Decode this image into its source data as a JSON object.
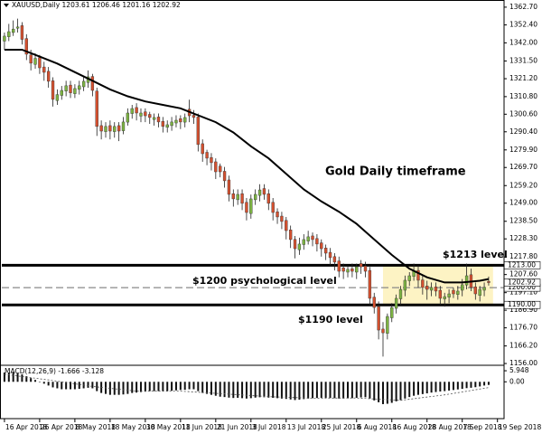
{
  "chart_data": {
    "type": "candlestick",
    "header": "XAUUSD,Daily  1203.61 1206.46 1201.16 1202.92",
    "bull_color": "#7cb342",
    "bear_color": "#d4502f",
    "ma_color": "#000000",
    "xlim": [
      -0.6,
      113.5
    ],
    "xticks": [
      {
        "value": 0,
        "label": "16 Apr 2018"
      },
      {
        "value": 8,
        "label": "26 Apr 2018"
      },
      {
        "value": 16,
        "label": "8 May 2018"
      },
      {
        "value": 24,
        "label": "18 May 2018"
      },
      {
        "value": 32,
        "label": "30 May 2018"
      },
      {
        "value": 40,
        "label": "11 Jun 2018"
      },
      {
        "value": 48,
        "label": "21 Jun 2018"
      },
      {
        "value": 56,
        "label": "3 Jul 2018"
      },
      {
        "value": 64,
        "label": "13 Jul 2018"
      },
      {
        "value": 72,
        "label": "25 Jul 2018"
      },
      {
        "value": 80,
        "label": "6 Aug 2018"
      },
      {
        "value": 88,
        "label": "16 Aug 2018"
      },
      {
        "value": 96,
        "label": "28 Aug 2018"
      },
      {
        "value": 104,
        "label": "7 Sep 2018"
      },
      {
        "value": 112,
        "label": "19 Sep 2018"
      }
    ],
    "ylim": [
      1155.5,
      1365.8
    ],
    "yticks": [
      {
        "value": 1362.7,
        "label": "1362.70"
      },
      {
        "value": 1352.4,
        "label": "1352.40"
      },
      {
        "value": 1342,
        "label": "1342.00"
      },
      {
        "value": 1331.5,
        "label": "1331.50"
      },
      {
        "value": 1321.2,
        "label": "1321.20"
      },
      {
        "value": 1310.8,
        "label": "1310.80"
      },
      {
        "value": 1300.6,
        "label": "1300.60"
      },
      {
        "value": 1290.4,
        "label": "1290.40"
      },
      {
        "value": 1279.9,
        "label": "1279.90"
      },
      {
        "value": 1269.7,
        "label": "1269.70"
      },
      {
        "value": 1259.2,
        "label": "1259.20"
      },
      {
        "value": 1249,
        "label": "1249.00"
      },
      {
        "value": 1238.5,
        "label": "1238.50"
      },
      {
        "value": 1228.3,
        "label": "1228.30"
      },
      {
        "value": 1217.8,
        "label": "1217.80"
      },
      {
        "value": 1207.6,
        "label": "1207.60"
      },
      {
        "value": 1197.1,
        "label": "1197.10"
      },
      {
        "value": 1186.9,
        "label": "1186.90"
      },
      {
        "value": 1176.7,
        "label": "1176.70"
      },
      {
        "value": 1166.2,
        "label": "1166.20"
      },
      {
        "value": 1156,
        "label": "1156.00"
      }
    ],
    "open": [
      1343.0,
      1345.5,
      1348.0,
      1350.5,
      1352.0,
      1344.5,
      1335.0,
      1329.5,
      1333.5,
      1328.0,
      1325.5,
      1320.0,
      1308.5,
      1311.5,
      1314.0,
      1317.5,
      1312.5,
      1315.0,
      1316.5,
      1319.0,
      1322.5,
      1314.0,
      1294.0,
      1290.5,
      1294.0,
      1290.5,
      1294.0,
      1291.0,
      1296.0,
      1301.0,
      1304.5,
      1299.5,
      1302.0,
      1300.5,
      1297.5,
      1299.0,
      1296.5,
      1293.0,
      1294.0,
      1295.5,
      1298.0,
      1296.0,
      1303.5,
      1300.0,
      1299.0,
      1283.5,
      1278.5,
      1275.5,
      1273.0,
      1270.5,
      1267.5,
      1262.5,
      1254.5,
      1251.0,
      1254.5,
      1249.5,
      1243.0,
      1251.0,
      1253.5,
      1257.5,
      1254.5,
      1249.5,
      1244.0,
      1241.5,
      1239.0,
      1233.5,
      1228.0,
      1222.0,
      1225.0,
      1227.0,
      1230.0,
      1228.5,
      1226.0,
      1223.0,
      1220.5,
      1218.0,
      1215.5,
      1211.5,
      1209.0,
      1211.0,
      1209.0,
      1214.0,
      1212.5,
      1210.0,
      1194.5,
      1189.0,
      1176.0,
      1173.5,
      1182.5,
      1188.0,
      1193.5,
      1198.5,
      1204.0,
      1206.5,
      1210.0,
      1204.5,
      1201.0,
      1198.5,
      1200.5,
      1198.5,
      1193.5,
      1194.5,
      1198.5,
      1196.0,
      1198.5,
      1201.5,
      1207.5,
      1200.5,
      1195.5,
      1198.5,
      1203.61
    ],
    "high": [
      1348,
      1353,
      1355,
      1356,
      1354,
      1347,
      1338,
      1336,
      1335,
      1331,
      1328,
      1322,
      1315,
      1317,
      1320,
      1320,
      1318,
      1320,
      1323,
      1326,
      1324,
      1316,
      1297,
      1296,
      1297,
      1296,
      1296,
      1299,
      1304,
      1306,
      1307,
      1304,
      1304,
      1302,
      1301,
      1301,
      1299,
      1297,
      1299,
      1300,
      1300,
      1301,
      1309,
      1303,
      1301,
      1286,
      1280,
      1278,
      1275,
      1272,
      1270,
      1265,
      1257,
      1257,
      1257,
      1252,
      1254,
      1257,
      1260,
      1260,
      1257,
      1252,
      1246,
      1244,
      1241,
      1236,
      1230,
      1229,
      1231,
      1233,
      1232,
      1231,
      1228,
      1225,
      1223,
      1220,
      1218,
      1214,
      1213,
      1214,
      1214,
      1216,
      1215,
      1212,
      1197,
      1192,
      1180,
      1185,
      1191,
      1196,
      1201,
      1207,
      1209,
      1214,
      1213,
      1207,
      1204,
      1203,
      1203,
      1201,
      1197,
      1199,
      1200,
      1201,
      1205,
      1214,
      1211,
      1203,
      1201,
      1203,
      1206.46
    ],
    "low": [
      1338,
      1343,
      1346,
      1348,
      1341,
      1332,
      1326,
      1327,
      1324,
      1320,
      1316,
      1305,
      1306,
      1309,
      1311,
      1310,
      1310,
      1312,
      1314,
      1316,
      1311,
      1288,
      1286,
      1287,
      1286,
      1287,
      1285,
      1289,
      1294,
      1298,
      1297,
      1296,
      1296,
      1295,
      1294,
      1293,
      1290,
      1290,
      1291,
      1293,
      1292,
      1293,
      1296,
      1295,
      1279,
      1273,
      1271,
      1268,
      1263,
      1264,
      1258,
      1250,
      1247,
      1248,
      1245,
      1239,
      1240,
      1248,
      1250,
      1251,
      1245,
      1239,
      1237,
      1234,
      1228,
      1223,
      1217,
      1219,
      1222,
      1225,
      1224,
      1221,
      1218,
      1216,
      1213,
      1210,
      1206,
      1205,
      1206,
      1206,
      1205,
      1208,
      1206,
      1190,
      1185,
      1170,
      1160,
      1170,
      1180,
      1185,
      1190,
      1195,
      1201,
      1204,
      1200,
      1196,
      1193,
      1195,
      1195,
      1190,
      1189,
      1191,
      1194,
      1193,
      1195,
      1199,
      1198,
      1193,
      1192,
      1195,
      1201.16
    ],
    "close": [
      1345.9,
      1348.5,
      1350.0,
      1351.2,
      1344.0,
      1335.4,
      1330.2,
      1333.0,
      1327.5,
      1324.9,
      1319.7,
      1309.2,
      1312.0,
      1314.4,
      1317.1,
      1313.0,
      1315.5,
      1317.1,
      1319.7,
      1322.3,
      1314.4,
      1293.5,
      1290.8,
      1293.5,
      1290.8,
      1293.5,
      1290.8,
      1296.1,
      1301.3,
      1303.9,
      1301.3,
      1301.3,
      1299.7,
      1298.7,
      1298.7,
      1296.1,
      1293.5,
      1294.5,
      1296.1,
      1297.1,
      1296.1,
      1298.7,
      1299.7,
      1298.7,
      1283.0,
      1277.7,
      1275.1,
      1272.5,
      1267.2,
      1267.2,
      1262.0,
      1254.1,
      1251.5,
      1254.1,
      1248.9,
      1243.6,
      1251.5,
      1254.1,
      1256.7,
      1254.1,
      1248.9,
      1243.6,
      1241.0,
      1238.4,
      1233.1,
      1227.9,
      1222.6,
      1225.3,
      1227.9,
      1229.5,
      1227.9,
      1225.3,
      1222.6,
      1220.0,
      1217.4,
      1214.8,
      1209.5,
      1209.5,
      1210.6,
      1209.5,
      1212.1,
      1212.1,
      1209.5,
      1193.8,
      1188.5,
      1175.4,
      1173.8,
      1183.3,
      1188.5,
      1193.8,
      1199.0,
      1204.3,
      1206.9,
      1209.5,
      1204.3,
      1200.1,
      1199.0,
      1200.1,
      1198.0,
      1193.8,
      1194.8,
      1196.4,
      1196.4,
      1198.0,
      1201.7,
      1206.9,
      1200.1,
      1196.4,
      1199.0,
      1200.1,
      1202.92
    ],
    "ma": {
      "x": [
        0,
        4,
        8,
        12,
        16,
        20,
        24,
        28,
        32,
        36,
        40,
        44,
        48,
        52,
        56,
        60,
        64,
        68,
        72,
        76,
        80,
        84,
        88,
        92,
        96,
        100,
        104,
        108,
        110
      ],
      "values": [
        1338,
        1338,
        1334,
        1330,
        1325,
        1320,
        1315,
        1311,
        1308,
        1306,
        1304,
        1300,
        1296,
        1290,
        1282,
        1275,
        1266,
        1257,
        1250,
        1244,
        1237,
        1228,
        1219,
        1211,
        1206,
        1203,
        1203,
        1204,
        1205
      ]
    },
    "levels": [
      {
        "value": 1213,
        "label": "1213.00",
        "style": "solid"
      },
      {
        "value": 1200,
        "label": "1200.00",
        "style": "dashed"
      },
      {
        "value": 1190,
        "label": "1190.00",
        "style": "solid"
      }
    ],
    "last_price": {
      "value": 1202.92,
      "label": "1202.92"
    },
    "zone": {
      "xlim": [
        86,
        111
      ],
      "ylim": [
        1190,
        1213
      ],
      "color": "#fdf3c4"
    },
    "annotations": [
      "Gold Daily timeframe",
      "$1213 level",
      "$1200 psychological level",
      "$1190 level"
    ],
    "macd": {
      "title": "MACD(12,26,9) -1.666 -3.128",
      "ylim": [
        -19.8,
        8.4
      ],
      "yticks": [
        5.948,
        {
          "value": 0,
          "label": "0.00"
        }
      ],
      "histogram": [
        5,
        5,
        5,
        4.5,
        4,
        3,
        2,
        1,
        0,
        -1,
        -2,
        -3,
        -3.5,
        -4,
        -4,
        -4,
        -4,
        -3.8,
        -3.5,
        -3.2,
        -3.5,
        -5,
        -6,
        -6.5,
        -7,
        -7,
        -7,
        -6.8,
        -6.5,
        -6,
        -5.8,
        -5.5,
        -5.3,
        -5,
        -5,
        -5,
        -5,
        -5,
        -4.8,
        -4.6,
        -4.4,
        -4.3,
        -4,
        -4,
        -5,
        -6,
        -6.5,
        -7,
        -7.5,
        -8,
        -8.2,
        -8.5,
        -8.7,
        -8.6,
        -8.8,
        -9,
        -8.8,
        -8.5,
        -8.3,
        -8.3,
        -8.5,
        -8.6,
        -8.8,
        -9,
        -9.2,
        -9.5,
        -9.8,
        -9.6,
        -9.3,
        -9,
        -8.8,
        -8.7,
        -8.6,
        -8.6,
        -8.7,
        -8.8,
        -9,
        -9,
        -8.9,
        -8.8,
        -8.6,
        -8.4,
        -8.3,
        -9,
        -10,
        -11,
        -12,
        -11.8,
        -11.3,
        -10.5,
        -9.8,
        -9,
        -8.2,
        -7.5,
        -7,
        -6.6,
        -6.2,
        -5.8,
        -5.5,
        -5.2,
        -5,
        -4.7,
        -4.4,
        -4.1,
        -3.8,
        -3.4,
        -3.2,
        -2.9,
        -2.5,
        -2,
        -1.666
      ],
      "signal": {
        "x": [
          0,
          10,
          20,
          30,
          40,
          50,
          60,
          70,
          80,
          90,
          100,
          110
        ],
        "values": [
          4,
          1,
          -2.5,
          -5,
          -5,
          -6.5,
          -8,
          -8.8,
          -8.7,
          -10,
          -7,
          -3.128
        ]
      }
    }
  }
}
